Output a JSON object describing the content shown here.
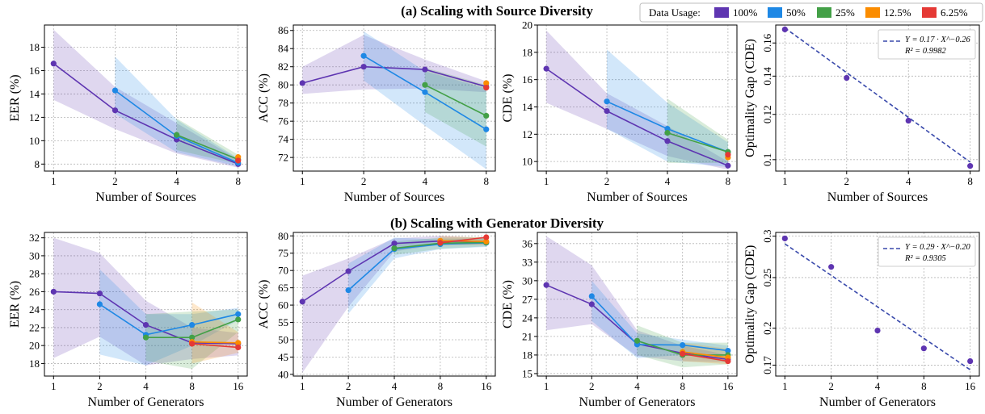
{
  "legend": {
    "title": "Data Usage:",
    "entries": [
      {
        "label": "100%",
        "color": "#5E35B1"
      },
      {
        "label": "50%",
        "color": "#1E88E5"
      },
      {
        "label": "25%",
        "color": "#43A047"
      },
      {
        "label": "12.5%",
        "color": "#FB8C00"
      },
      {
        "label": "6.25%",
        "color": "#E53935"
      }
    ]
  },
  "rows": [
    {
      "title": "(a) Scaling with Source Diversity"
    },
    {
      "title": "(b) Scaling with Generator Diversity"
    }
  ],
  "chart_data": [
    {
      "type": "line",
      "row": 0,
      "col": 0,
      "xlabel": "Number of Sources",
      "ylabel": "EER (%)",
      "x": [
        1,
        2,
        4,
        8
      ],
      "xticks": [
        1,
        2,
        4,
        8
      ],
      "xscale": "log2",
      "ylim": [
        7.4,
        19.9
      ],
      "yticks": [
        8,
        10,
        12,
        14,
        16,
        18
      ],
      "grid": true,
      "series": [
        {
          "name": "100%",
          "x": [
            1,
            2,
            4,
            8
          ],
          "values": [
            16.6,
            12.6,
            10.1,
            8.0
          ],
          "band_low": [
            13.5,
            11.0,
            8.9,
            7.7
          ],
          "band_high": [
            19.5,
            14.6,
            11.5,
            8.4
          ]
        },
        {
          "name": "50%",
          "x": [
            2,
            4,
            8
          ],
          "values": [
            14.3,
            10.4,
            8.1
          ],
          "band_low": [
            12.3,
            9.0,
            7.8
          ],
          "band_high": [
            17.2,
            11.8,
            8.5
          ]
        },
        {
          "name": "25%",
          "x": [
            4,
            8
          ],
          "values": [
            10.5,
            8.4
          ],
          "band_low": [
            9.2,
            8.0
          ],
          "band_high": [
            11.9,
            8.8
          ]
        },
        {
          "name": "12.5%",
          "x": [
            8
          ],
          "values": [
            8.6
          ]
        },
        {
          "name": "6.25%",
          "x": [
            8
          ],
          "values": [
            8.3
          ]
        }
      ]
    },
    {
      "type": "line",
      "row": 0,
      "col": 1,
      "xlabel": "Number of Sources",
      "ylabel": "ACC (%)",
      "x": [
        1,
        2,
        4,
        8
      ],
      "xticks": [
        1,
        2,
        4,
        8
      ],
      "xscale": "log2",
      "ylim": [
        70.5,
        86.6
      ],
      "yticks": [
        72,
        74,
        76,
        78,
        80,
        82,
        84,
        86
      ],
      "grid": true,
      "series": [
        {
          "name": "100%",
          "x": [
            1,
            2,
            4,
            8
          ],
          "values": [
            80.2,
            82.0,
            81.7,
            79.8
          ],
          "band_low": [
            79.0,
            79.5,
            79.6,
            79.2
          ],
          "band_high": [
            82.0,
            85.5,
            82.8,
            80.4
          ]
        },
        {
          "name": "50%",
          "x": [
            2,
            4,
            8
          ],
          "values": [
            83.2,
            79.2,
            75.1
          ],
          "band_low": [
            80.5,
            75.5,
            70.7
          ],
          "band_high": [
            85.9,
            81.5,
            79.6
          ]
        },
        {
          "name": "25%",
          "x": [
            4,
            8
          ],
          "values": [
            80.0,
            76.6
          ],
          "band_low": [
            77.0,
            73.2
          ],
          "band_high": [
            81.9,
            80.0
          ]
        },
        {
          "name": "12.5%",
          "x": [
            8
          ],
          "values": [
            80.2
          ]
        },
        {
          "name": "6.25%",
          "x": [
            8
          ],
          "values": [
            79.7
          ]
        }
      ]
    },
    {
      "type": "line",
      "row": 0,
      "col": 2,
      "xlabel": "Number of Sources",
      "ylabel": "CDE (%)",
      "x": [
        1,
        2,
        4,
        8
      ],
      "xticks": [
        1,
        2,
        4,
        8
      ],
      "xscale": "log2",
      "ylim": [
        9.3,
        20.0
      ],
      "yticks": [
        10,
        12,
        14,
        16,
        18,
        20
      ],
      "grid": true,
      "series": [
        {
          "name": "100%",
          "x": [
            1,
            2,
            4,
            8
          ],
          "values": [
            16.8,
            13.7,
            11.5,
            9.7
          ],
          "band_low": [
            14.3,
            12.4,
            10.4,
            9.4
          ],
          "band_high": [
            19.6,
            15.0,
            12.6,
            10.0
          ]
        },
        {
          "name": "50%",
          "x": [
            2,
            4,
            8
          ],
          "values": [
            14.4,
            12.4,
            10.7
          ],
          "band_low": [
            12.4,
            10.0,
            9.6
          ],
          "band_high": [
            18.2,
            14.3,
            11.4
          ]
        },
        {
          "name": "25%",
          "x": [
            4,
            8
          ],
          "values": [
            12.1,
            10.7
          ],
          "band_low": [
            9.9,
            9.9
          ],
          "band_high": [
            14.6,
            11.6
          ]
        },
        {
          "name": "12.5%",
          "x": [
            8
          ],
          "values": [
            10.3
          ]
        },
        {
          "name": "6.25%",
          "x": [
            8
          ],
          "values": [
            10.5
          ]
        }
      ]
    },
    {
      "type": "scatter",
      "row": 0,
      "col": 3,
      "xlabel": "Number of Sources",
      "ylabel": "Optimality Gap (CDE)",
      "x": [
        1,
        2,
        4,
        8
      ],
      "xticks": [
        1,
        2,
        4,
        8
      ],
      "xscale": "log2",
      "yscale": "log",
      "ylim": [
        0.0955,
        0.172
      ],
      "yticks": [
        0.1,
        0.12,
        0.14,
        0.16
      ],
      "ytick_labels": [
        "0.1",
        "0.12",
        "0.14",
        "0.16"
      ],
      "grid": true,
      "points": {
        "x": [
          1,
          2,
          4,
          8
        ],
        "values": [
          0.169,
          0.139,
          0.117,
          0.0975
        ]
      },
      "fit": {
        "a": 0.17,
        "b": -0.26,
        "equation": "Y = 0.17 · X^−0.26",
        "r2": "R² = 0.9982"
      }
    },
    {
      "type": "line",
      "row": 1,
      "col": 0,
      "xlabel": "Number of Generators",
      "ylabel": "EER (%)",
      "x": [
        1,
        2,
        4,
        8,
        16
      ],
      "xticks": [
        1,
        2,
        4,
        8,
        16
      ],
      "xscale": "log2",
      "ylim": [
        16.6,
        32.6
      ],
      "yticks": [
        18,
        20,
        22,
        24,
        26,
        28,
        30,
        32
      ],
      "grid": true,
      "series": [
        {
          "name": "100%",
          "x": [
            1,
            2,
            4,
            8,
            16
          ],
          "values": [
            26.0,
            25.8,
            22.3,
            20.3,
            20.2
          ],
          "band_low": [
            18.6,
            21.0,
            17.8,
            18.5,
            18.9
          ],
          "band_high": [
            32.0,
            30.3,
            25.0,
            22.0,
            21.4
          ]
        },
        {
          "name": "50%",
          "x": [
            2,
            4,
            8,
            16
          ],
          "values": [
            24.6,
            21.2,
            22.3,
            23.5
          ],
          "band_low": [
            19.0,
            17.8,
            20.0,
            22.8
          ],
          "band_high": [
            28.5,
            23.5,
            23.5,
            24.2
          ]
        },
        {
          "name": "25%",
          "x": [
            4,
            8,
            16
          ],
          "values": [
            20.9,
            20.9,
            22.9
          ],
          "band_low": [
            18.3,
            17.4,
            21.5
          ],
          "band_high": [
            23.5,
            23.8,
            24.0
          ]
        },
        {
          "name": "12.5%",
          "x": [
            8,
            16
          ],
          "values": [
            20.4,
            20.3
          ],
          "band_low": [
            18.0,
            19.2
          ],
          "band_high": [
            24.8,
            21.5
          ]
        },
        {
          "name": "6.25%",
          "x": [
            8,
            16
          ],
          "values": [
            20.2,
            19.8
          ]
        }
      ]
    },
    {
      "type": "line",
      "row": 1,
      "col": 1,
      "xlabel": "Number of Generators",
      "ylabel": "ACC (%)",
      "x": [
        1,
        2,
        4,
        8,
        16
      ],
      "xticks": [
        1,
        2,
        4,
        8,
        16
      ],
      "xscale": "log2",
      "ylim": [
        39.5,
        81.0
      ],
      "yticks": [
        40,
        45,
        50,
        55,
        60,
        65,
        70,
        75,
        80
      ],
      "grid": true,
      "series": [
        {
          "name": "100%",
          "x": [
            1,
            2,
            4,
            8,
            16
          ],
          "values": [
            61.0,
            69.8,
            77.8,
            78.5,
            78.3
          ],
          "band_low": [
            40.5,
            59.5,
            75.5,
            77.5,
            77.5
          ],
          "band_high": [
            68.5,
            73.5,
            79.3,
            80.0,
            79.3
          ]
        },
        {
          "name": "50%",
          "x": [
            2,
            4,
            8,
            16
          ],
          "values": [
            64.3,
            76.2,
            77.6,
            78.0
          ],
          "band_low": [
            57.5,
            73.5,
            76.2,
            76.8
          ],
          "band_high": [
            72.0,
            79.5,
            79.0,
            79.3
          ]
        },
        {
          "name": "25%",
          "x": [
            4,
            8,
            16
          ],
          "values": [
            76.4,
            77.9,
            78.1
          ],
          "band_low": [
            74.5,
            76.3,
            77.0
          ],
          "band_high": [
            78.3,
            79.5,
            79.6
          ]
        },
        {
          "name": "12.5%",
          "x": [
            8,
            16
          ],
          "values": [
            78.6,
            78.4
          ],
          "band_low": [
            77.2,
            77.4
          ],
          "band_high": [
            80.0,
            79.5
          ]
        },
        {
          "name": "6.25%",
          "x": [
            8,
            16
          ],
          "values": [
            78.0,
            79.6
          ]
        }
      ]
    },
    {
      "type": "line",
      "row": 1,
      "col": 2,
      "xlabel": "Number of Generators",
      "ylabel": "CDE (%)",
      "x": [
        1,
        2,
        4,
        8,
        16
      ],
      "xticks": [
        1,
        2,
        4,
        8,
        16
      ],
      "xscale": "log2",
      "ylim": [
        14.6,
        37.8
      ],
      "yticks": [
        15,
        18,
        21,
        24,
        27,
        30,
        33,
        36
      ],
      "grid": true,
      "series": [
        {
          "name": "100%",
          "x": [
            1,
            2,
            4,
            8,
            16
          ],
          "values": [
            29.3,
            26.2,
            19.8,
            18.3,
            17.3
          ],
          "band_low": [
            22.0,
            23.0,
            17.8,
            17.0,
            16.8
          ],
          "band_high": [
            37.2,
            32.5,
            22.0,
            19.5,
            18.0
          ]
        },
        {
          "name": "50%",
          "x": [
            2,
            4,
            8,
            16
          ],
          "values": [
            27.5,
            19.7,
            19.6,
            18.7
          ],
          "band_low": [
            23.5,
            17.5,
            18.0,
            18.0
          ],
          "band_high": [
            30.0,
            21.5,
            20.5,
            19.5
          ]
        },
        {
          "name": "25%",
          "x": [
            4,
            8,
            16
          ],
          "values": [
            20.3,
            18.0,
            18.0
          ],
          "band_low": [
            18.0,
            16.0,
            16.5
          ],
          "band_high": [
            22.8,
            20.0,
            20.0
          ]
        },
        {
          "name": "12.5%",
          "x": [
            8,
            16
          ],
          "values": [
            18.5,
            17.6
          ],
          "band_low": [
            17.0,
            16.5
          ],
          "band_high": [
            20.0,
            19.0
          ]
        },
        {
          "name": "6.25%",
          "x": [
            8,
            16
          ],
          "values": [
            18.2,
            17.0
          ]
        }
      ]
    },
    {
      "type": "scatter",
      "row": 1,
      "col": 3,
      "xlabel": "Number of Generators",
      "ylabel": "Optimality Gap (CDE)",
      "x": [
        1,
        2,
        4,
        8,
        16
      ],
      "xticks": [
        1,
        2,
        4,
        8,
        16
      ],
      "xscale": "log2",
      "yscale": "log",
      "ylim": [
        0.162,
        0.305
      ],
      "yticks": [
        0.17,
        0.2,
        0.25,
        0.3
      ],
      "ytick_labels": [
        "0.17",
        "0.2",
        "0.25",
        "0.3"
      ],
      "grid": true,
      "points": {
        "x": [
          1,
          2,
          4,
          8,
          16
        ],
        "values": [
          0.297,
          0.262,
          0.198,
          0.183,
          0.173
        ]
      },
      "fit": {
        "a": 0.29,
        "b": -0.2,
        "equation": "Y = 0.29 · X^−0.20",
        "r2": "R² = 0.9305"
      }
    }
  ]
}
